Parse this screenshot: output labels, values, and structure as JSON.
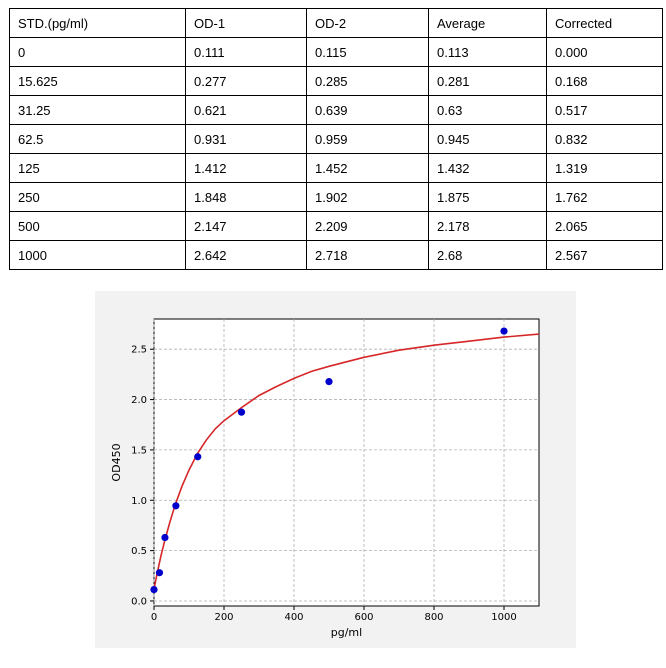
{
  "table": {
    "headers": [
      "STD.(pg/ml)",
      "OD-1",
      "OD-2",
      "Average",
      "Corrected"
    ],
    "rows": [
      [
        "0",
        "0.111",
        "0.115",
        "0.113",
        "0.000"
      ],
      [
        "15.625",
        "0.277",
        "0.285",
        "0.281",
        "0.168"
      ],
      [
        "31.25",
        "0.621",
        "0.639",
        "0.63",
        "0.517"
      ],
      [
        "62.5",
        "0.931",
        "0.959",
        "0.945",
        "0.832"
      ],
      [
        "125",
        "1.412",
        "1.452",
        "1.432",
        "1.319"
      ],
      [
        "250",
        "1.848",
        "1.902",
        "1.875",
        "1.762"
      ],
      [
        "500",
        "2.147",
        "2.209",
        "2.178",
        "2.065"
      ],
      [
        "1000",
        "2.642",
        "2.718",
        "2.68",
        "2.567"
      ]
    ]
  },
  "chart_data": {
    "type": "scatter",
    "xlabel": "pg/ml",
    "ylabel": "OD450",
    "xlim": [
      0,
      1100
    ],
    "ylim": [
      -0.05,
      2.8
    ],
    "xticks": [
      0,
      200,
      400,
      600,
      800,
      1000
    ],
    "yticks": [
      0.0,
      0.5,
      1.0,
      1.5,
      2.0,
      2.5
    ],
    "grid": true,
    "points": {
      "x": [
        0,
        15.625,
        31.25,
        62.5,
        125,
        250,
        500,
        1000
      ],
      "y": [
        0.113,
        0.281,
        0.63,
        0.945,
        1.432,
        1.875,
        2.178,
        2.68
      ]
    },
    "fit_curve": {
      "x": [
        0,
        10,
        20,
        30,
        45,
        60,
        80,
        100,
        125,
        150,
        175,
        200,
        250,
        300,
        350,
        400,
        450,
        500,
        600,
        700,
        800,
        900,
        1000,
        1100
      ],
      "y": [
        0.12,
        0.29,
        0.45,
        0.59,
        0.78,
        0.95,
        1.14,
        1.3,
        1.47,
        1.6,
        1.71,
        1.79,
        1.92,
        2.04,
        2.13,
        2.21,
        2.28,
        2.33,
        2.42,
        2.49,
        2.54,
        2.58,
        2.62,
        2.65
      ]
    },
    "colors": {
      "points": "#0000cc",
      "curve": "#d62728",
      "grid": "#b0b0b0"
    }
  }
}
